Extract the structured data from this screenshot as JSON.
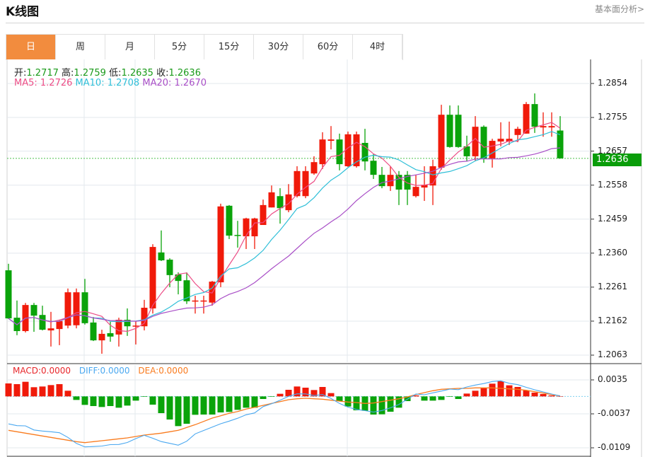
{
  "header": {
    "title": "K线图",
    "link": "基本面分析>"
  },
  "tabs": [
    {
      "label": "日",
      "active": true
    },
    {
      "label": "周"
    },
    {
      "label": "月"
    },
    {
      "label": "5分"
    },
    {
      "label": "15分"
    },
    {
      "label": "30分"
    },
    {
      "label": "60分"
    },
    {
      "label": "4时"
    }
  ],
  "ohlc": {
    "open_label": "开:",
    "open": "1.2717",
    "high_label": "高:",
    "high": "1.2759",
    "low_label": "低:",
    "low": "1.2635",
    "close_label": "收:",
    "close": "1.2636"
  },
  "ma": {
    "ma5_label": "MA5: ",
    "ma5": "1.2726",
    "ma10_label": "MA10: ",
    "ma10": "1.2708",
    "ma20_label": "MA20: ",
    "ma20": "1.2670"
  },
  "macd_info": {
    "macd": "MACD:0.0000",
    "diff": "DIFF:0.0000",
    "dea": "DEA:0.0000"
  },
  "colors": {
    "up": "#f01a0a",
    "down": "#0aa30a",
    "ma5": "#ec4d86",
    "ma10": "#2fbfd8",
    "ma20": "#a94fc7",
    "diff": "#4aa8f0",
    "dea": "#f97b1e"
  },
  "chart_data": {
    "type": "candlestick",
    "price_axis": {
      "ticks": [
        "1.2854",
        "1.2755",
        "1.2657",
        "1.2558",
        "1.2459",
        "1.2360",
        "1.2261",
        "1.2162",
        "1.2063"
      ],
      "range": [
        1.2063,
        1.2854
      ]
    },
    "current_price": "1.2636",
    "candles": [
      [
        1.231,
        1.2329,
        1.2168,
        1.217
      ],
      [
        1.2172,
        1.2222,
        1.2121,
        1.2133
      ],
      [
        1.2133,
        1.2215,
        1.2129,
        1.2209
      ],
      [
        1.2209,
        1.2215,
        1.2131,
        1.2178
      ],
      [
        1.218,
        1.2207,
        1.2135,
        1.2137
      ],
      [
        1.2135,
        1.2189,
        1.2088,
        1.2141
      ],
      [
        1.2139,
        1.2166,
        1.2092,
        1.2162
      ],
      [
        1.2149,
        1.2257,
        1.2141,
        1.2246
      ],
      [
        1.215,
        1.2257,
        1.2141,
        1.2246
      ],
      [
        1.2246,
        1.2285,
        1.2152,
        1.2156
      ],
      [
        1.2158,
        1.2174,
        1.2104,
        1.2106
      ],
      [
        1.2106,
        1.2137,
        1.2067,
        1.2125
      ],
      [
        1.2127,
        1.216,
        1.2102,
        1.2117
      ],
      [
        1.2123,
        1.2172,
        1.2088,
        1.2166
      ],
      [
        1.2166,
        1.2199,
        1.2119,
        1.2147
      ],
      [
        1.2147,
        1.2162,
        1.2094,
        1.2149
      ],
      [
        1.2147,
        1.2224,
        1.2135,
        1.2201
      ],
      [
        1.2199,
        1.2386,
        1.2184,
        1.2378
      ],
      [
        1.2362,
        1.2426,
        1.2337,
        1.2339
      ],
      [
        1.2341,
        1.2345,
        1.2261,
        1.2296
      ],
      [
        1.2298,
        1.2304,
        1.224,
        1.2279
      ],
      [
        1.2281,
        1.2304,
        1.2212,
        1.222
      ],
      [
        1.222,
        1.2236,
        1.2184,
        1.2222
      ],
      [
        1.222,
        1.2236,
        1.2184,
        1.2222
      ],
      [
        1.2216,
        1.2279,
        1.2207,
        1.2277
      ],
      [
        1.2275,
        1.2504,
        1.2261,
        1.2496
      ],
      [
        1.2498,
        1.25,
        1.2401,
        1.2411
      ],
      [
        1.2413,
        1.2454,
        1.2376,
        1.2411
      ],
      [
        1.2409,
        1.2463,
        1.2372,
        1.2461
      ],
      [
        1.2409,
        1.2463,
        1.2372,
        1.2461
      ],
      [
        1.2442,
        1.2516,
        1.2442,
        1.25
      ],
      [
        1.2493,
        1.2557,
        1.2493,
        1.2537
      ],
      [
        1.2526,
        1.2549,
        1.2446,
        1.2491
      ],
      [
        1.2485,
        1.2561,
        1.2479,
        1.2531
      ],
      [
        1.2526,
        1.2613,
        1.2522,
        1.2599
      ],
      [
        1.2526,
        1.2613,
        1.252,
        1.2599
      ],
      [
        1.2592,
        1.2642,
        1.2588,
        1.2625
      ],
      [
        1.2619,
        1.2712,
        1.2605,
        1.2691
      ],
      [
        1.2687,
        1.273,
        1.2662,
        1.2691
      ],
      [
        1.2691,
        1.2708,
        1.2601,
        1.2619
      ],
      [
        1.2613,
        1.2714,
        1.2611,
        1.2706
      ],
      [
        1.2613,
        1.2714,
        1.2609,
        1.2706
      ],
      [
        1.2681,
        1.2722,
        1.2601,
        1.2627
      ],
      [
        1.2629,
        1.2648,
        1.2576,
        1.2588
      ],
      [
        1.2588,
        1.2611,
        1.2549,
        1.2555
      ],
      [
        1.2555,
        1.2613,
        1.2541,
        1.2588
      ],
      [
        1.2588,
        1.2599,
        1.25,
        1.2545
      ],
      [
        1.2588,
        1.2599,
        1.25,
        1.2545
      ],
      [
        1.2526,
        1.2588,
        1.2522,
        1.2553
      ],
      [
        1.2551,
        1.2613,
        1.2512,
        1.2559
      ],
      [
        1.2557,
        1.2632,
        1.25,
        1.2613
      ],
      [
        1.2609,
        1.2792,
        1.2603,
        1.2763
      ],
      [
        1.2763,
        1.279,
        1.2667,
        1.2669
      ],
      [
        1.2763,
        1.279,
        1.2667,
        1.2669
      ],
      [
        1.2671,
        1.2702,
        1.2627,
        1.2642
      ],
      [
        1.2642,
        1.2759,
        1.2629,
        1.2728
      ],
      [
        1.2728,
        1.2732,
        1.2623,
        1.2634
      ],
      [
        1.2636,
        1.2693,
        1.2609,
        1.2687
      ],
      [
        1.2685,
        1.2741,
        1.2671,
        1.2693
      ],
      [
        1.2685,
        1.2743,
        1.2675,
        1.2693
      ],
      [
        1.2704,
        1.2728,
        1.2683,
        1.2722
      ],
      [
        1.2708,
        1.28,
        1.2708,
        1.2794
      ],
      [
        1.2794,
        1.2825,
        1.271,
        1.2728
      ],
      [
        1.2726,
        1.277,
        1.2699,
        1.273
      ],
      [
        1.2726,
        1.277,
        1.2699,
        1.273
      ],
      [
        1.2717,
        1.2759,
        1.2635,
        1.2636
      ]
    ],
    "macd_axis": {
      "ticks": [
        "0.0035",
        "-0.0037",
        "-0.0109"
      ],
      "range": [
        -0.0109,
        0.0035
      ]
    },
    "macd_hist": [
      0.00275,
      0.0026,
      0.0031,
      0.00195,
      0.0021,
      0.0024,
      0.0026,
      0.0012,
      -0.00075,
      -0.0018,
      -0.00205,
      -0.00225,
      -0.00205,
      -0.0024,
      -0.00195,
      -0.0009,
      -0.0001,
      -0.00175,
      -0.00355,
      -0.0049,
      -0.0063,
      -0.0058,
      -0.0039,
      -0.00385,
      -0.00385,
      -0.0034,
      -0.0033,
      -0.00285,
      -0.0024,
      -0.0024,
      -0.00055,
      -0.0001,
      0.00055,
      0.0014,
      0.0021,
      0.00185,
      0.00135,
      0.002,
      0.0007,
      -0.001,
      -0.00215,
      -0.00295,
      -0.00305,
      -0.00385,
      -0.0038,
      -0.00325,
      -0.0024,
      -0.001,
      0.0002,
      -0.0009,
      -0.0009,
      -0.00075,
      -0.0001,
      -0.00055,
      0.0006,
      0.0012,
      0.00185,
      0.0027,
      0.0032,
      0.00235,
      0.002,
      0.00125,
      0.0008,
      0.0005,
      0.0002,
      0.0
    ],
    "dea": [
      -0.0072,
      -0.0075,
      -0.0078,
      -0.0081,
      -0.0084,
      -0.0087,
      -0.009,
      -0.0093,
      -0.0096,
      -0.0098,
      -0.0096,
      -0.0094,
      -0.0092,
      -0.009,
      -0.0088,
      -0.0085,
      -0.0082,
      -0.008,
      -0.0078,
      -0.0075,
      -0.0072,
      -0.0066,
      -0.006,
      -0.0053,
      -0.0046,
      -0.0041,
      -0.0036,
      -0.0032,
      -0.0027,
      -0.0023,
      -0.0019,
      -0.0015,
      -0.0011,
      -0.0007,
      -0.0005,
      -0.0004,
      -0.0005,
      -0.0006,
      -0.0008,
      -0.001,
      -0.0012,
      -0.0013,
      -0.0015,
      -0.0014,
      -0.0011,
      -0.0008,
      -0.0005,
      -0.0001,
      0.0004,
      0.0008,
      0.0012,
      0.0015,
      0.0016,
      0.0017,
      0.0017,
      0.0018,
      0.0018,
      0.0018,
      0.0017,
      0.0016,
      0.0015,
      0.0013,
      0.001,
      0.0007,
      0.0004,
      0.0001
    ]
  }
}
